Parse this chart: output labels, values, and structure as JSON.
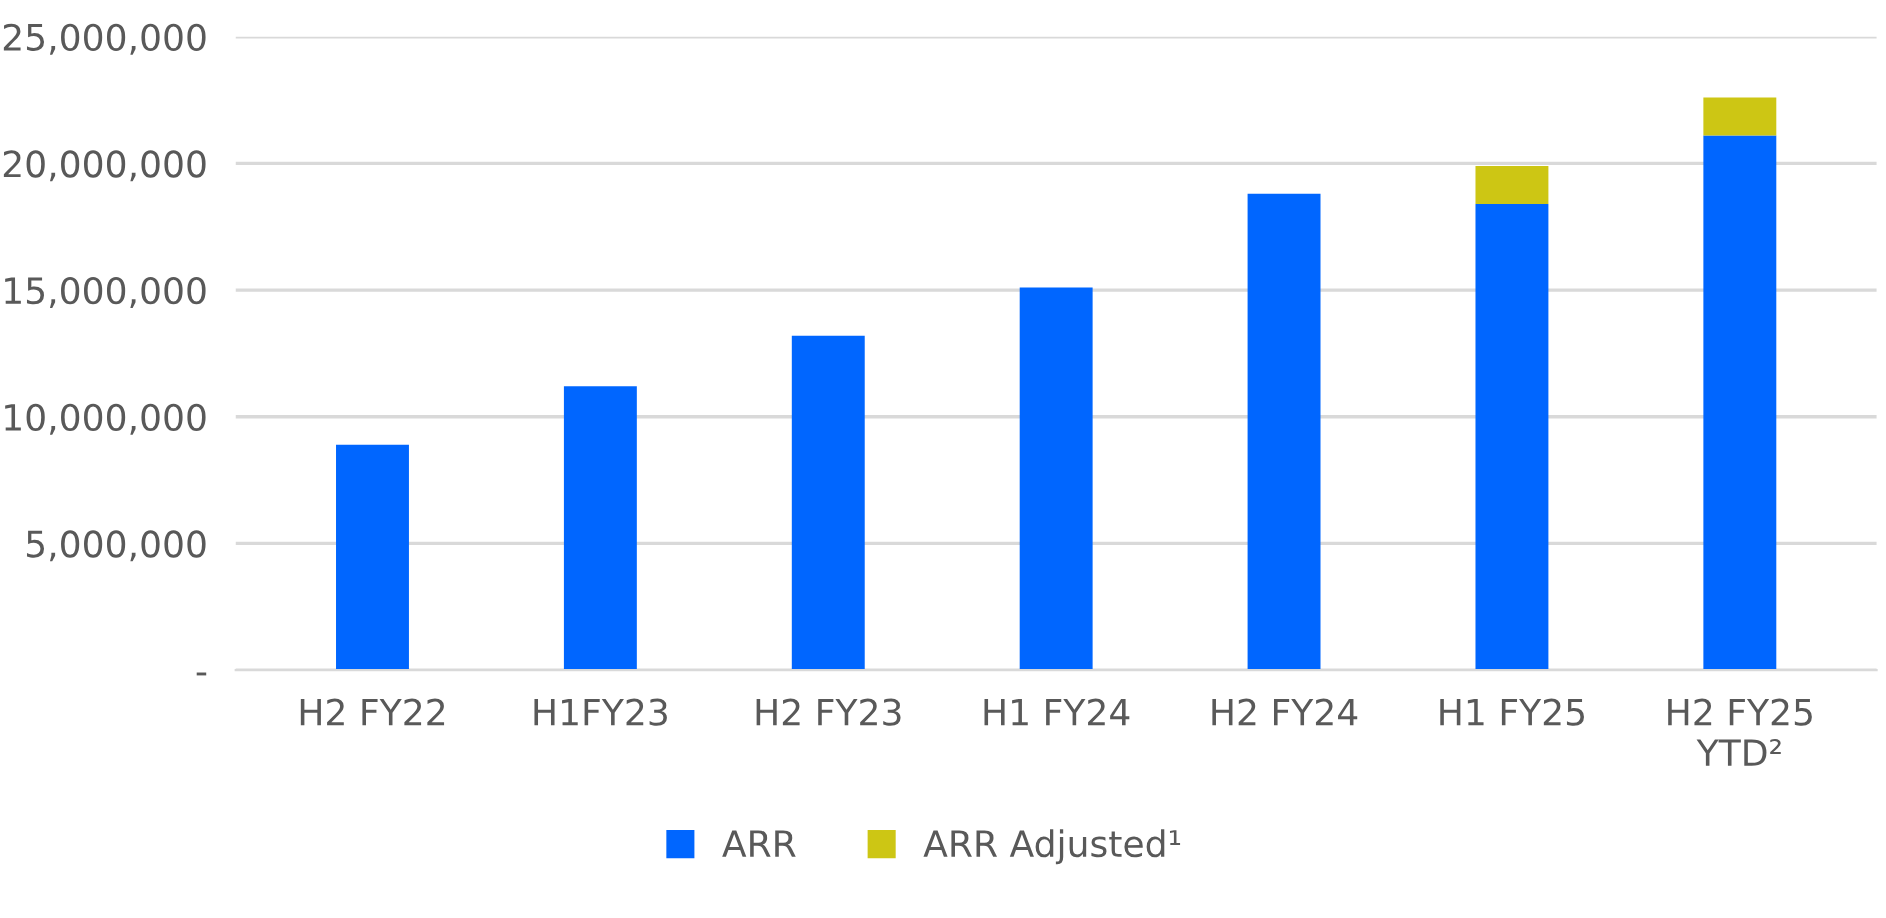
{
  "chart_data": {
    "type": "bar",
    "stacked": true,
    "categories": [
      "H2 FY22",
      "H1FY23",
      "H2 FY23",
      "H1 FY24",
      "H2 FY24",
      "H1 FY25",
      "H2 FY25\nYTD²"
    ],
    "series": [
      {
        "name": "ARR",
        "color": "#0066ff",
        "values": [
          8900000,
          11200000,
          13200000,
          15100000,
          18800000,
          18400000,
          21100000
        ]
      },
      {
        "name": "ARR Adjusted¹",
        "color": "#cdc614",
        "values": [
          null,
          null,
          null,
          null,
          null,
          1500000,
          1500000
        ]
      }
    ],
    "ylim": [
      0,
      25000000
    ],
    "yticks": [
      {
        "value": 0,
        "label": "-"
      },
      {
        "value": 5000000,
        "label": "5,000,000"
      },
      {
        "value": 10000000,
        "label": "10,000,000"
      },
      {
        "value": 15000000,
        "label": "15,000,000"
      },
      {
        "value": 20000000,
        "label": "20,000,000"
      },
      {
        "value": 25000000,
        "label": "25,000,000"
      }
    ],
    "grid": "y",
    "legend": "bottom"
  }
}
